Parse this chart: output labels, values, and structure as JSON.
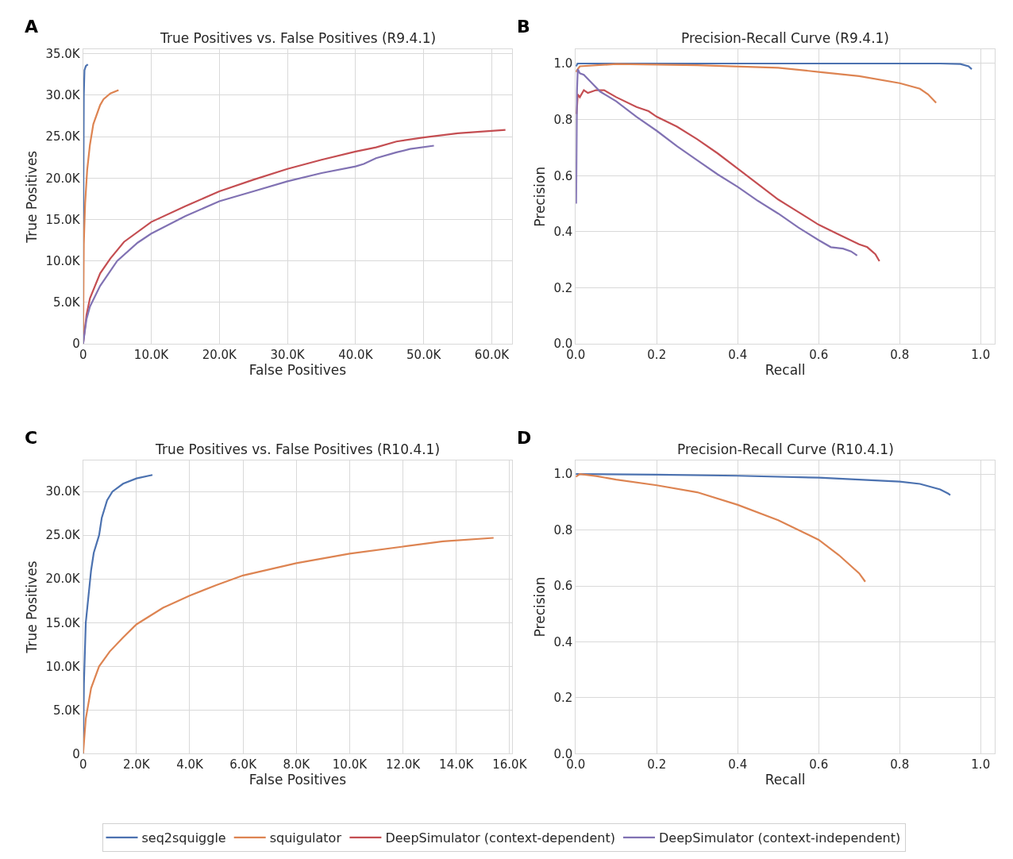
{
  "chart_data": [
    {
      "type": "line",
      "title": "True Positives vs. False Positives (R9.4.1)",
      "xlabel": "False Positives",
      "ylabel": "True Positives",
      "annotations": [
        "A"
      ],
      "grid": true,
      "legend": "bottom",
      "line_style": "solid",
      "marker": "none",
      "xlim": [
        0,
        63000
      ],
      "ylim": [
        0,
        35500
      ],
      "xticks": [
        0,
        {
          "value": 10000,
          "label": "10.0K"
        },
        {
          "value": 20000,
          "label": "20.0K"
        },
        {
          "value": 30000,
          "label": "30.0K"
        },
        {
          "value": 40000,
          "label": "40.0K"
        },
        {
          "value": 50000,
          "label": "50.0K"
        },
        {
          "value": 60000,
          "label": "60.0K"
        }
      ],
      "yticks": [
        0,
        {
          "value": 5000,
          "label": "5.0K"
        },
        {
          "value": 10000,
          "label": "10.0K"
        },
        {
          "value": 15000,
          "label": "15.0K"
        },
        {
          "value": 20000,
          "label": "20.0K"
        },
        {
          "value": 25000,
          "label": "25.0K"
        },
        {
          "value": 30000,
          "label": "30.0K"
        },
        {
          "value": 35000,
          "label": "35.0K"
        }
      ],
      "series": [
        {
          "name": "seq2squiggle",
          "color": "#4c72b0",
          "x": [
            0,
            50,
            100,
            200,
            400,
            700
          ],
          "values": [
            0,
            20000,
            30000,
            33000,
            33500,
            33700
          ]
        },
        {
          "name": "squigulator",
          "color": "#dd8452",
          "x": [
            0,
            100,
            300,
            600,
            1000,
            1500,
            2500,
            3000,
            4000,
            5200
          ],
          "values": [
            0,
            12000,
            17000,
            21000,
            24000,
            26500,
            28800,
            29500,
            30200,
            30600
          ]
        },
        {
          "name": "DeepSimulator (context-dependent)",
          "color": "#c44e52",
          "x": [
            0,
            500,
            1000,
            2500,
            4000,
            6000,
            10000,
            15000,
            20000,
            25000,
            30000,
            35000,
            40000,
            43000,
            46000,
            50000,
            55000,
            62000
          ],
          "values": [
            0,
            3500,
            5500,
            8500,
            10300,
            12300,
            14700,
            16600,
            18400,
            19800,
            21100,
            22200,
            23200,
            23700,
            24400,
            24900,
            25400,
            25800
          ]
        },
        {
          "name": "DeepSimulator (context-independent)",
          "color": "#8172b3",
          "x": [
            0,
            500,
            1000,
            2500,
            5000,
            8000,
            10000,
            15000,
            20000,
            25000,
            30000,
            35000,
            40000,
            41200,
            43000,
            46000,
            48000,
            51500
          ],
          "values": [
            0,
            3000,
            4500,
            7000,
            10000,
            12200,
            13300,
            15400,
            17200,
            18400,
            19600,
            20600,
            21400,
            21700,
            22400,
            23100,
            23500,
            23900
          ]
        }
      ]
    },
    {
      "type": "line",
      "title": "Precision-Recall Curve (R9.4.1)",
      "xlabel": "Recall",
      "ylabel": "Precision",
      "annotations": [
        "B"
      ],
      "grid": true,
      "line_style": "solid",
      "marker": "none",
      "xlim": [
        0,
        1.035
      ],
      "ylim": [
        0,
        1.05
      ],
      "xticks": [
        {
          "value": 0,
          "label": "0.0"
        },
        0.2,
        0.4,
        0.6,
        0.8,
        {
          "value": 1,
          "label": "1.0"
        }
      ],
      "yticks": [
        {
          "value": 0,
          "label": "0.0"
        },
        0.2,
        0.4,
        0.6,
        0.8,
        {
          "value": 1,
          "label": "1.0"
        }
      ],
      "series": [
        {
          "name": "seq2squiggle",
          "color": "#4c72b0",
          "x": [
            0,
            0.005,
            0.5,
            0.9,
            0.95,
            0.97,
            0.978
          ],
          "values": [
            0.99,
            1.0,
            1.0,
            1.0,
            0.998,
            0.99,
            0.98
          ]
        },
        {
          "name": "squigulator",
          "color": "#dd8452",
          "x": [
            0,
            0.01,
            0.1,
            0.3,
            0.5,
            0.6,
            0.7,
            0.8,
            0.85,
            0.87,
            0.89
          ],
          "values": [
            0.97,
            0.99,
            0.998,
            0.994,
            0.985,
            0.97,
            0.955,
            0.93,
            0.91,
            0.89,
            0.86
          ]
        },
        {
          "name": "DeepSimulator (context-dependent)",
          "color": "#c44e52",
          "x": [
            0.002,
            0.005,
            0.01,
            0.02,
            0.03,
            0.05,
            0.07,
            0.1,
            0.15,
            0.18,
            0.2,
            0.25,
            0.3,
            0.35,
            0.4,
            0.45,
            0.5,
            0.55,
            0.6,
            0.65,
            0.7,
            0.72,
            0.74,
            0.75
          ],
          "values": [
            0.82,
            0.89,
            0.88,
            0.905,
            0.895,
            0.905,
            0.905,
            0.88,
            0.845,
            0.83,
            0.81,
            0.775,
            0.73,
            0.68,
            0.625,
            0.57,
            0.515,
            0.47,
            0.425,
            0.39,
            0.355,
            0.345,
            0.32,
            0.295
          ]
        },
        {
          "name": "DeepSimulator (context-independent)",
          "color": "#8172b3",
          "x": [
            0.001,
            0.003,
            0.005,
            0.01,
            0.02,
            0.04,
            0.06,
            0.1,
            0.15,
            0.2,
            0.25,
            0.3,
            0.35,
            0.4,
            0.45,
            0.5,
            0.55,
            0.6,
            0.63,
            0.66,
            0.68,
            0.695
          ],
          "values": [
            0.5,
            0.9,
            0.98,
            0.965,
            0.96,
            0.93,
            0.9,
            0.865,
            0.81,
            0.76,
            0.705,
            0.655,
            0.605,
            0.56,
            0.51,
            0.465,
            0.415,
            0.37,
            0.345,
            0.34,
            0.33,
            0.315
          ]
        }
      ]
    },
    {
      "type": "line",
      "title": "True Positives vs. False Positives (R10.4.1)",
      "xlabel": "False Positives",
      "ylabel": "True Positives",
      "annotations": [
        "C"
      ],
      "grid": true,
      "line_style": "solid",
      "marker": "none",
      "xlim": [
        0,
        16100
      ],
      "ylim": [
        0,
        33600
      ],
      "xticks": [
        0,
        {
          "value": 2000,
          "label": "2.0K"
        },
        {
          "value": 4000,
          "label": "4.0K"
        },
        {
          "value": 6000,
          "label": "6.0K"
        },
        {
          "value": 8000,
          "label": "8.0K"
        },
        {
          "value": 10000,
          "label": "10.0K"
        },
        {
          "value": 12000,
          "label": "12.0K"
        },
        {
          "value": 14000,
          "label": "14.0K"
        },
        {
          "value": 16000,
          "label": "16.0K"
        }
      ],
      "yticks": [
        0,
        {
          "value": 5000,
          "label": "5.0K"
        },
        {
          "value": 10000,
          "label": "10.0K"
        },
        {
          "value": 15000,
          "label": "15.0K"
        },
        {
          "value": 20000,
          "label": "20.0K"
        },
        {
          "value": 25000,
          "label": "25.0K"
        },
        {
          "value": 30000,
          "label": "30.0K"
        }
      ],
      "series": [
        {
          "name": "seq2squiggle",
          "color": "#4c72b0",
          "x": [
            0,
            30,
            70,
            100,
            200,
            300,
            400,
            600,
            700,
            900,
            1100,
            1500,
            2000,
            2600
          ],
          "values": [
            0,
            8000,
            12000,
            15000,
            18000,
            21000,
            23000,
            25000,
            27000,
            29000,
            30000,
            30900,
            31500,
            31900
          ]
        },
        {
          "name": "squigulator",
          "color": "#dd8452",
          "x": [
            0,
            100,
            300,
            600,
            1000,
            1500,
            2000,
            3000,
            4000,
            5000,
            6000,
            7000,
            8000,
            10000,
            12000,
            13500,
            15400
          ],
          "values": [
            0,
            4000,
            7500,
            10000,
            11700,
            13300,
            14800,
            16700,
            18100,
            19300,
            20400,
            21100,
            21800,
            22900,
            23700,
            24300,
            24700
          ]
        }
      ]
    },
    {
      "type": "line",
      "title": "Precision-Recall Curve (R10.4.1)",
      "xlabel": "Recall",
      "ylabel": "Precision",
      "annotations": [
        "D"
      ],
      "grid": true,
      "line_style": "solid",
      "marker": "none",
      "xlim": [
        0,
        1.035
      ],
      "ylim": [
        0,
        1.05
      ],
      "xticks": [
        {
          "value": 0,
          "label": "0.0"
        },
        0.2,
        0.4,
        0.6,
        0.8,
        {
          "value": 1,
          "label": "1.0"
        }
      ],
      "yticks": [
        {
          "value": 0,
          "label": "0.0"
        },
        0.2,
        0.4,
        0.6,
        0.8,
        {
          "value": 1,
          "label": "1.0"
        }
      ],
      "series": [
        {
          "name": "seq2squiggle",
          "color": "#4c72b0",
          "x": [
            0,
            0.2,
            0.4,
            0.6,
            0.7,
            0.8,
            0.85,
            0.9,
            0.92,
            0.925
          ],
          "values": [
            1.0,
            0.998,
            0.994,
            0.987,
            0.98,
            0.973,
            0.965,
            0.945,
            0.93,
            0.925
          ]
        },
        {
          "name": "squigulator",
          "color": "#dd8452",
          "x": [
            0,
            0.01,
            0.05,
            0.1,
            0.2,
            0.3,
            0.4,
            0.5,
            0.6,
            0.65,
            0.7,
            0.715
          ],
          "values": [
            0.99,
            1.0,
            0.993,
            0.98,
            0.96,
            0.935,
            0.89,
            0.835,
            0.765,
            0.71,
            0.645,
            0.615
          ]
        }
      ]
    }
  ]
}
